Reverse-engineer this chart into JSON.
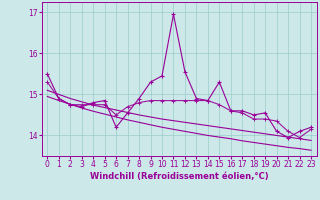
{
  "xlabel": "Windchill (Refroidissement éolien,°C)",
  "background_color": "#cce8e8",
  "grid_color": "#99cccc",
  "line_color": "#990099",
  "x": [
    0,
    1,
    2,
    3,
    4,
    5,
    6,
    7,
    8,
    9,
    10,
    11,
    12,
    13,
    14,
    15,
    16,
    17,
    18,
    19,
    20,
    21,
    22,
    23
  ],
  "y_main": [
    15.5,
    14.9,
    14.75,
    14.7,
    14.8,
    14.85,
    14.2,
    14.55,
    14.9,
    15.3,
    15.45,
    16.95,
    15.55,
    14.9,
    14.85,
    15.3,
    14.6,
    14.6,
    14.5,
    14.55,
    14.1,
    13.95,
    14.1,
    14.2
  ],
  "y_smooth": [
    15.3,
    14.9,
    14.75,
    14.75,
    14.75,
    14.75,
    14.5,
    14.7,
    14.8,
    14.85,
    14.85,
    14.85,
    14.85,
    14.85,
    14.85,
    14.75,
    14.6,
    14.55,
    14.4,
    14.4,
    14.35,
    14.1,
    13.95,
    14.15
  ],
  "y_trend1": [
    15.1,
    15.0,
    14.9,
    14.82,
    14.74,
    14.68,
    14.62,
    14.56,
    14.5,
    14.45,
    14.4,
    14.36,
    14.32,
    14.28,
    14.24,
    14.2,
    14.16,
    14.12,
    14.08,
    14.04,
    14.0,
    13.96,
    13.92,
    13.88
  ],
  "y_trend2": [
    14.95,
    14.85,
    14.76,
    14.67,
    14.59,
    14.52,
    14.45,
    14.38,
    14.32,
    14.26,
    14.2,
    14.15,
    14.1,
    14.05,
    14.0,
    13.96,
    13.92,
    13.87,
    13.83,
    13.79,
    13.75,
    13.71,
    13.68,
    13.64
  ],
  "ylim_min": 13.5,
  "ylim_max": 17.25,
  "xlim_min": -0.5,
  "xlim_max": 23.5,
  "yticks": [
    14,
    15,
    16,
    17
  ],
  "xticks": [
    0,
    1,
    2,
    3,
    4,
    5,
    6,
    7,
    8,
    9,
    10,
    11,
    12,
    13,
    14,
    15,
    16,
    17,
    18,
    19,
    20,
    21,
    22,
    23
  ],
  "fontsize_ticks": 5.5,
  "fontsize_xlabel": 6.0,
  "marker_size": 3.0,
  "linewidth": 0.8
}
